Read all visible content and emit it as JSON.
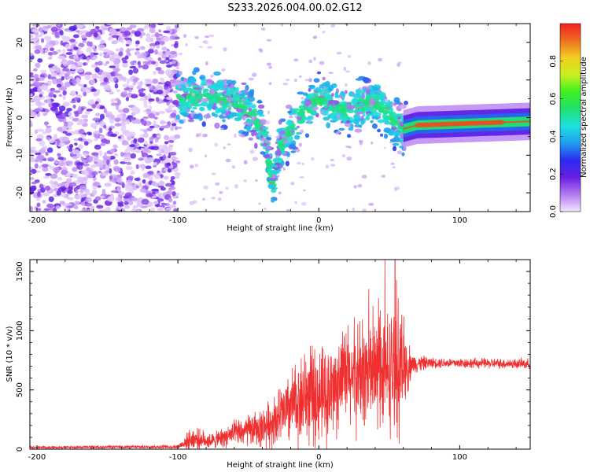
{
  "title": "S233.2026.004.00.02.G12",
  "chart_data": [
    {
      "type": "heatmap",
      "name": "spectrogram",
      "xlabel": "Height of straight line (km)",
      "ylabel": "Frequency (Hz)",
      "xlim": [
        -205,
        150
      ],
      "ylim": [
        -25,
        25
      ],
      "xticks": [
        -200,
        -100,
        0,
        100
      ],
      "yticks": [
        -20,
        -10,
        0,
        10,
        20
      ],
      "colorbar": {
        "label": "Normalized spectral amplitude",
        "range": [
          0,
          1
        ],
        "ticks": [
          0.0,
          0.2,
          0.4,
          0.6,
          0.8
        ],
        "colors": [
          "#f2e6ff",
          "#b57cf2",
          "#6a1fe0",
          "#2a2cf0",
          "#1f9cf0",
          "#1fe0e0",
          "#20e070",
          "#3cf020",
          "#c8f020",
          "#f0d020",
          "#f07020",
          "#f02020"
        ]
      },
      "ridge": [
        {
          "x": -100,
          "f": 5
        },
        {
          "x": -80,
          "f": 6
        },
        {
          "x": -60,
          "f": 4
        },
        {
          "x": -45,
          "f": 0
        },
        {
          "x": -38,
          "f": -5
        },
        {
          "x": -33,
          "f": -18
        },
        {
          "x": -28,
          "f": -8
        },
        {
          "x": -15,
          "f": 0
        },
        {
          "x": 0,
          "f": 5
        },
        {
          "x": 20,
          "f": 2
        },
        {
          "x": 40,
          "f": 4
        },
        {
          "x": 52,
          "f": 0
        },
        {
          "x": 60,
          "f": -3
        },
        {
          "x": 70,
          "f": -2
        },
        {
          "x": 150,
          "f": -1
        }
      ]
    },
    {
      "type": "line",
      "name": "snr",
      "xlabel": "Height of straight line (km)",
      "ylabel": "SNR (10 * v/v)",
      "xlim": [
        -205,
        150
      ],
      "ylim": [
        0,
        1600
      ],
      "xticks": [
        -200,
        -100,
        0,
        100
      ],
      "yticks": [
        0,
        500,
        1000,
        1500
      ],
      "color": "#f03030",
      "envelope": [
        {
          "x": -205,
          "mean": 15,
          "spread": 10
        },
        {
          "x": -100,
          "mean": 20,
          "spread": 15
        },
        {
          "x": -90,
          "mean": 90,
          "spread": 90
        },
        {
          "x": -75,
          "mean": 70,
          "spread": 60
        },
        {
          "x": -60,
          "mean": 130,
          "spread": 100
        },
        {
          "x": -40,
          "mean": 180,
          "spread": 150
        },
        {
          "x": -25,
          "mean": 300,
          "spread": 250
        },
        {
          "x": -10,
          "mean": 450,
          "spread": 380
        },
        {
          "x": 5,
          "mean": 450,
          "spread": 380
        },
        {
          "x": 20,
          "mean": 600,
          "spread": 420
        },
        {
          "x": 35,
          "mean": 650,
          "spread": 450
        },
        {
          "x": 48,
          "mean": 650,
          "spread": 480
        },
        {
          "x": 57,
          "mean": 700,
          "spread": 520
        },
        {
          "x": 66,
          "mean": 720,
          "spread": 80
        },
        {
          "x": 80,
          "mean": 730,
          "spread": 40
        },
        {
          "x": 150,
          "mean": 720,
          "spread": 40
        }
      ]
    }
  ]
}
